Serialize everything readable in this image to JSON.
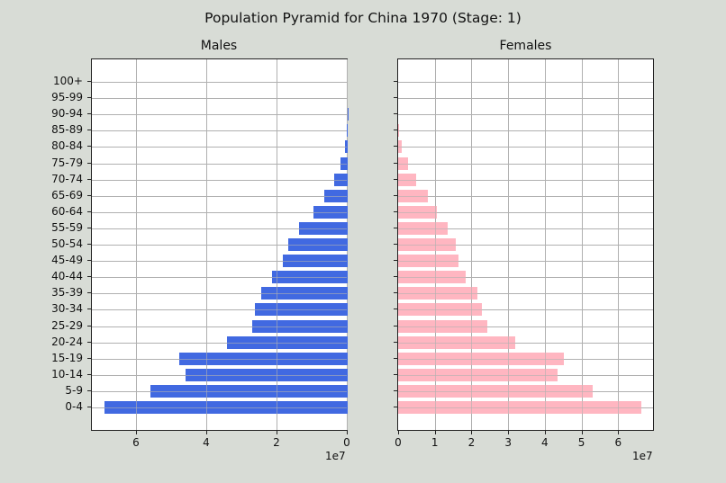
{
  "title": "Population Pyramid for China 1970 (Stage: 1)",
  "chart_data": [
    {
      "type": "bar",
      "orientation": "horizontal",
      "title": "Males",
      "categories": [
        "0-4",
        "5-9",
        "10-14",
        "15-19",
        "20-24",
        "25-29",
        "30-34",
        "35-39",
        "40-44",
        "45-49",
        "50-54",
        "55-59",
        "60-64",
        "65-69",
        "70-74",
        "75-79",
        "80-84",
        "85-89",
        "90-94",
        "95-99",
        "100+"
      ],
      "values": [
        69200000,
        56200000,
        46200000,
        47900000,
        34400000,
        27200000,
        26400000,
        24600000,
        21500000,
        18500000,
        16900000,
        13800000,
        9700000,
        6700000,
        3800000,
        2100000,
        800000,
        300000,
        100000,
        0,
        0
      ],
      "color": "#4169e1",
      "xlabel": "",
      "ylabel": "",
      "xticks": [
        "6",
        "4",
        "2",
        "0"
      ],
      "xaxis_offset": "1e7",
      "xlim": [
        72800000,
        0
      ],
      "inverted_x": true,
      "grid": true
    },
    {
      "type": "bar",
      "orientation": "horizontal",
      "title": "Females",
      "categories": [
        "0-4",
        "5-9",
        "10-14",
        "15-19",
        "20-24",
        "25-29",
        "30-34",
        "35-39",
        "40-44",
        "45-49",
        "50-54",
        "55-59",
        "60-64",
        "65-69",
        "70-74",
        "75-79",
        "80-84",
        "85-89",
        "90-94",
        "95-99",
        "100+"
      ],
      "values": [
        66300000,
        53100000,
        43500000,
        45200000,
        31900000,
        24300000,
        22900000,
        21600000,
        18400000,
        16500000,
        15700000,
        13500000,
        10600000,
        8100000,
        4900000,
        2700000,
        1000000,
        200000,
        0,
        0,
        0
      ],
      "color": "#ffb6c1",
      "xlabel": "",
      "ylabel": "",
      "xticks": [
        "0",
        "1",
        "2",
        "3",
        "4",
        "5",
        "6"
      ],
      "xaxis_offset": "1e7",
      "xlim": [
        0,
        69500000
      ],
      "grid": true
    }
  ],
  "males": {
    "title": "Males",
    "offset": "1e7"
  },
  "females": {
    "title": "Females",
    "offset": "1e7"
  }
}
